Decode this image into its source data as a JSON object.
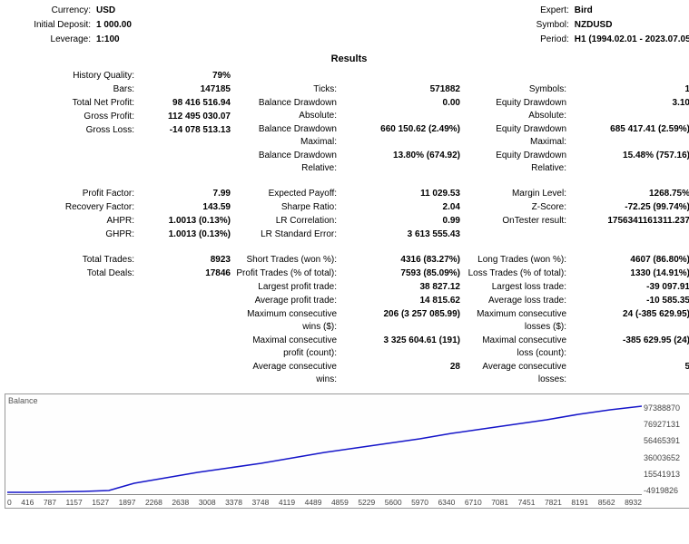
{
  "header_left": [
    {
      "k": "Currency:",
      "v": "USD"
    },
    {
      "k": "Initial Deposit:",
      "v": "1 000.00"
    },
    {
      "k": "Leverage:",
      "v": "1:100"
    }
  ],
  "header_right": [
    {
      "k": "Expert:",
      "v": "Bird"
    },
    {
      "k": "Symbol:",
      "v": "NZDUSD"
    },
    {
      "k": "Period:",
      "v": "H1 (1994.02.01 - 2023.07.05)"
    }
  ],
  "results_title": "Results",
  "groups": [
    {
      "c1": [
        [
          "History Quality:",
          "79%"
        ],
        [
          "Bars:",
          "147185"
        ],
        [
          "Total Net Profit:",
          "98 416 516.94"
        ],
        [
          "Gross Profit:",
          "112 495 030.07"
        ],
        [
          "Gross Loss:",
          "-14 078 513.13"
        ]
      ],
      "c2": [
        [
          "",
          ""
        ],
        [
          "Ticks:",
          "571882"
        ],
        [
          "Balance Drawdown Absolute:",
          "0.00"
        ],
        [
          "Balance Drawdown Maximal:",
          "660 150.62 (2.49%)"
        ],
        [
          "Balance Drawdown Relative:",
          "13.80% (674.92)"
        ]
      ],
      "c3": [
        [
          "",
          ""
        ],
        [
          "Symbols:",
          "1"
        ],
        [
          "Equity Drawdown Absolute:",
          "3.10"
        ],
        [
          "Equity Drawdown Maximal:",
          "685 417.41 (2.59%)"
        ],
        [
          "Equity Drawdown Relative:",
          "15.48% (757.16)"
        ]
      ]
    },
    {
      "c1": [
        [
          "Profit Factor:",
          "7.99"
        ],
        [
          "Recovery Factor:",
          "143.59"
        ],
        [
          "AHPR:",
          "1.0013 (0.13%)"
        ],
        [
          "GHPR:",
          "1.0013 (0.13%)"
        ]
      ],
      "c2": [
        [
          "Expected Payoff:",
          "11 029.53"
        ],
        [
          "Sharpe Ratio:",
          "2.04"
        ],
        [
          "LR Correlation:",
          "0.99"
        ],
        [
          "LR Standard Error:",
          "3 613 555.43"
        ]
      ],
      "c3": [
        [
          "Margin Level:",
          "1268.75%"
        ],
        [
          "Z-Score:",
          "-72.25 (99.74%)"
        ],
        [
          "OnTester result:",
          "1756341161311.237"
        ],
        [
          "",
          ""
        ]
      ]
    },
    {
      "c1": [
        [
          "Total Trades:",
          "8923"
        ],
        [
          "Total Deals:",
          "17846"
        ],
        [
          "",
          ""
        ],
        [
          "",
          ""
        ],
        [
          "",
          ""
        ],
        [
          "",
          ""
        ],
        [
          "",
          ""
        ]
      ],
      "c2": [
        [
          "Short Trades (won %):",
          "4316 (83.27%)"
        ],
        [
          "Profit Trades (% of total):",
          "7593 (85.09%)"
        ],
        [
          "Largest profit trade:",
          "38 827.12"
        ],
        [
          "Average profit trade:",
          "14 815.62"
        ],
        [
          "Maximum consecutive wins ($):",
          "206 (3 257 085.99)"
        ],
        [
          "Maximal consecutive profit (count):",
          "3 325 604.61 (191)"
        ],
        [
          "Average consecutive wins:",
          "28"
        ]
      ],
      "c3": [
        [
          "Long Trades (won %):",
          "4607 (86.80%)"
        ],
        [
          "Loss Trades (% of total):",
          "1330 (14.91%)"
        ],
        [
          "Largest loss trade:",
          "-39 097.91"
        ],
        [
          "Average loss trade:",
          "-10 585.35"
        ],
        [
          "Maximum consecutive losses ($):",
          "24 (-385 629.95)"
        ],
        [
          "Maximal consecutive loss (count):",
          "-385 629.95 (24)"
        ],
        [
          "Average consecutive losses:",
          "5"
        ]
      ]
    }
  ],
  "chart": {
    "title": "Balance",
    "type": "line",
    "line_color": "#1515c9",
    "line_width": 1.5,
    "background": "#fefefe",
    "border_color": "#999999",
    "x_ticks": [
      "0",
      "416",
      "787",
      "1157",
      "1527",
      "1897",
      "2268",
      "2638",
      "3008",
      "3378",
      "3748",
      "4119",
      "4489",
      "4859",
      "5229",
      "5600",
      "5970",
      "6340",
      "6710",
      "7081",
      "7451",
      "7821",
      "8191",
      "8562",
      "8932"
    ],
    "y_ticks": [
      "97388870",
      "76927131",
      "56465391",
      "36003652",
      "15541913",
      "-4919826"
    ],
    "points": [
      [
        0,
        98
      ],
      [
        4,
        98
      ],
      [
        8,
        97.5
      ],
      [
        12,
        97
      ],
      [
        16,
        96
      ],
      [
        20,
        88
      ],
      [
        25,
        82
      ],
      [
        30,
        76
      ],
      [
        35,
        71
      ],
      [
        40,
        66
      ],
      [
        45,
        60
      ],
      [
        50,
        54
      ],
      [
        55,
        49
      ],
      [
        60,
        44
      ],
      [
        65,
        39
      ],
      [
        70,
        33
      ],
      [
        75,
        28
      ],
      [
        80,
        23
      ],
      [
        85,
        18
      ],
      [
        90,
        12
      ],
      [
        95,
        7
      ],
      [
        100,
        3
      ]
    ]
  }
}
